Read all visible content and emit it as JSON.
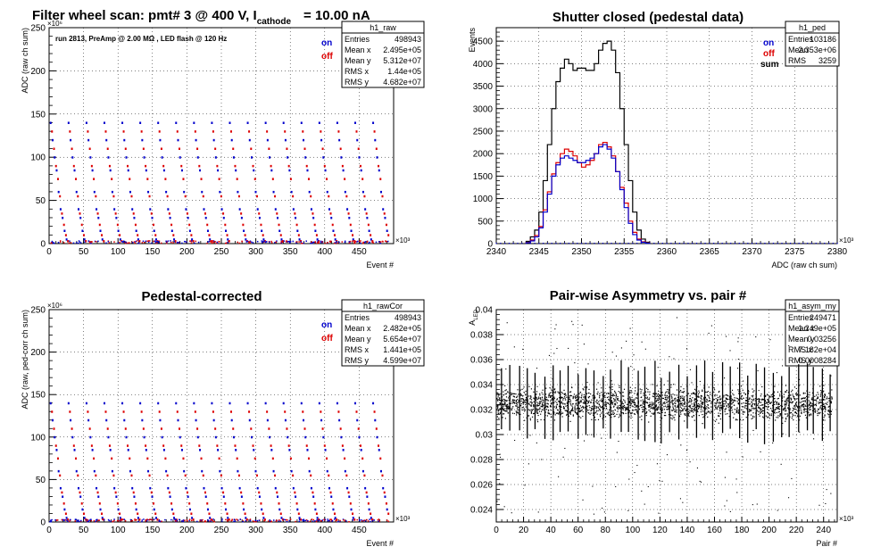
{
  "colors": {
    "on": "#0000cc",
    "off": "#dd0000",
    "sum": "#000000",
    "frame": "#000000"
  },
  "chart_data": [
    {
      "id": "raw",
      "type": "scatter",
      "title_main": "Filter wheel scan: pmt#   3 @   400 V, I",
      "title_sub": "cathode",
      "title_tail": "= 10.00 nA",
      "annotation": "run 2813, PreAmp @ 2.00 MΩ , LED flash @  120 Hz",
      "xlabel": "Event #",
      "ylabel": "ADC (raw ch sum)",
      "xexp": "×10³",
      "yexp": "×10⁶",
      "xlim": [
        0,
        500
      ],
      "ylim": [
        0,
        250
      ],
      "xticks": [
        "0",
        "50",
        "100",
        "150",
        "200",
        "250",
        "300",
        "350",
        "400",
        "450"
      ],
      "yticks": [
        "0",
        "50",
        "100",
        "150",
        "200",
        "250"
      ],
      "grid": true,
      "legend": [
        "on",
        "off"
      ],
      "stats": {
        "name": "h1_raw",
        "rows": [
          [
            "Entries",
            "498943"
          ],
          [
            "Mean x",
            "2.495e+05"
          ],
          [
            "Mean y",
            "5.312e+07"
          ],
          [
            "RMS x",
            "1.44e+05"
          ],
          [
            "RMS y",
            "4.682e+07"
          ]
        ]
      },
      "levels_on": [
        140,
        120,
        100,
        85,
        60,
        40,
        30,
        15,
        5
      ],
      "levels_off": [
        130,
        110,
        90,
        75,
        55,
        35,
        22,
        10,
        3
      ],
      "period": 26
    },
    {
      "id": "ped",
      "type": "histogram",
      "title_main": "Shutter closed (pedestal data)",
      "xlabel": "ADC (raw ch sum)",
      "ylabel": "Events",
      "xexp": "×10³",
      "xlim": [
        2340,
        2380
      ],
      "ylim": [
        0,
        4800
      ],
      "xticks": [
        "2340",
        "2345",
        "2350",
        "2355",
        "2360",
        "2365",
        "2370",
        "2375",
        "2380"
      ],
      "yticks": [
        "0",
        "500",
        "1000",
        "1500",
        "2000",
        "2500",
        "3000",
        "3500",
        "4000",
        "4500"
      ],
      "grid": true,
      "legend": [
        "on",
        "off",
        "sum"
      ],
      "stats": {
        "name": "h1_ped",
        "rows": [
          [
            "Entries",
            "103186"
          ],
          [
            "Mean",
            "2.353e+06"
          ],
          [
            "RMS",
            "3259"
          ]
        ]
      },
      "bin_width": 0.5,
      "bin_start": 2343.5,
      "sum": [
        50,
        150,
        300,
        700,
        1400,
        2200,
        3000,
        3600,
        3900,
        4100,
        4000,
        3850,
        3900,
        3900,
        3850,
        3850,
        4000,
        4300,
        4450,
        4500,
        4300,
        3800,
        3000,
        2200,
        1400,
        700,
        300,
        100,
        30
      ],
      "on": [
        20,
        60,
        150,
        350,
        700,
        1100,
        1500,
        1750,
        1900,
        1950,
        1900,
        1850,
        1800,
        1800,
        1850,
        1900,
        2000,
        2150,
        2200,
        2100,
        1900,
        1600,
        1200,
        800,
        450,
        200,
        80,
        30,
        10
      ],
      "off": [
        25,
        80,
        180,
        380,
        750,
        1150,
        1550,
        1800,
        2000,
        2100,
        2050,
        1950,
        1800,
        1700,
        1750,
        1850,
        2000,
        2200,
        2250,
        2150,
        1950,
        1600,
        1250,
        900,
        500,
        250,
        100,
        40,
        15
      ]
    },
    {
      "id": "rawCor",
      "type": "scatter",
      "title_main": "Pedestal-corrected",
      "xlabel": "Event #",
      "ylabel": "ADC (raw, ped-corr ch sum)",
      "xexp": "×10³",
      "yexp": "×10⁶",
      "xlim": [
        0,
        500
      ],
      "ylim": [
        0,
        250
      ],
      "xticks": [
        "0",
        "50",
        "100",
        "150",
        "200",
        "250",
        "300",
        "350",
        "400",
        "450"
      ],
      "yticks": [
        "0",
        "50",
        "100",
        "150",
        "200",
        "250"
      ],
      "grid": true,
      "legend": [
        "on",
        "off"
      ],
      "stats": {
        "name": "h1_rawCor",
        "rows": [
          [
            "Entries",
            "498943"
          ],
          [
            "Mean x",
            "2.482e+05"
          ],
          [
            "Mean y",
            "5.654e+07"
          ],
          [
            "RMS x",
            "1.441e+05"
          ],
          [
            "RMS y",
            "4.599e+07"
          ]
        ]
      },
      "levels_on": [
        140,
        120,
        100,
        85,
        60,
        40,
        30,
        15,
        5
      ],
      "levels_off": [
        130,
        110,
        90,
        75,
        55,
        35,
        22,
        10,
        3
      ],
      "period": 26
    },
    {
      "id": "asym",
      "type": "scatter",
      "title_main": "Pair-wise Asymmetry vs. pair #",
      "xlabel": "Pair #",
      "ylabel": "A",
      "ylabel_sub": "LED",
      "xexp": "×10³",
      "xlim": [
        0,
        250
      ],
      "ylim": [
        0.023,
        0.04
      ],
      "xticks": [
        "0",
        "20",
        "40",
        "60",
        "80",
        "100",
        "120",
        "140",
        "160",
        "180",
        "200",
        "220",
        "240"
      ],
      "yticks": [
        "0.024",
        "0.026",
        "0.028",
        "0.03",
        "0.032",
        "0.034",
        "0.036",
        "0.038",
        "0.04"
      ],
      "grid": true,
      "stats": {
        "name": "h1_asym_my",
        "rows": [
          [
            "Entries",
            "249471"
          ],
          [
            "Mean x",
            "1.249e+05"
          ],
          [
            "Mean y",
            "0.03256"
          ],
          [
            "RMS x",
            "7.182e+04"
          ],
          [
            "RMS y",
            "0.0008284"
          ]
        ]
      },
      "center": 0.0325,
      "spread": 0.0006
    }
  ]
}
